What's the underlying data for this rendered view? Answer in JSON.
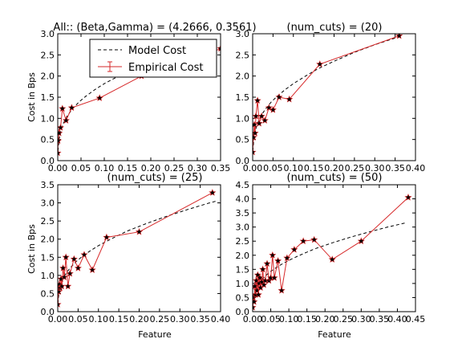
{
  "chart_data": [
    {
      "type": "line",
      "title": "All:: (Beta,Gamma) = (4.2666, 0.3561)",
      "xlabel": "",
      "ylabel": "Cost in Bps",
      "xlim": [
        0,
        0.35
      ],
      "ylim": [
        0,
        3.0
      ],
      "xticks": [
        0.0,
        0.05,
        0.1,
        0.15,
        0.2,
        0.25,
        0.3,
        0.35
      ],
      "xtick_labels": [
        "0.00",
        "0.05",
        "0.10",
        "0.15",
        "0.20",
        "0.25",
        "0.30",
        "0.35"
      ],
      "yticks": [
        0,
        0.5,
        1.0,
        1.5,
        2.0,
        2.5,
        3.0
      ],
      "ytick_labels": [
        "0.0",
        "0.5",
        "1.0",
        "1.5",
        "2.0",
        "2.5",
        "3.0"
      ],
      "series": [
        {
          "name": "Model Cost",
          "style": "dashed",
          "color": "#000000",
          "x": [
            0.0005,
            0.003,
            0.007,
            0.012,
            0.02,
            0.03,
            0.045,
            0.06,
            0.08,
            0.1,
            0.14,
            0.18,
            0.22,
            0.26,
            0.3,
            0.33
          ],
          "y": [
            0.23,
            0.51,
            0.72,
            0.88,
            1.05,
            1.2,
            1.38,
            1.52,
            1.68,
            1.82,
            2.05,
            2.25,
            2.43,
            2.6,
            2.75,
            2.86
          ]
        },
        {
          "name": "Empirical Cost",
          "style": "solid-star",
          "color": "#d62728",
          "x": [
            0.0,
            0.001,
            0.003,
            0.006,
            0.01,
            0.018,
            0.03,
            0.09,
            0.18,
            0.27,
            0.35
          ],
          "y": [
            0.18,
            0.47,
            0.65,
            0.78,
            1.23,
            0.95,
            1.25,
            1.48,
            2.0,
            2.3,
            2.65
          ]
        }
      ],
      "legend": {
        "placement": "top-left"
      }
    },
    {
      "type": "line",
      "title": "(num_cuts) = (20)",
      "xlabel": "",
      "ylabel": "",
      "xlim": [
        0,
        0.4
      ],
      "ylim": [
        0,
        3.0
      ],
      "xticks": [
        0.0,
        0.05,
        0.1,
        0.15,
        0.2,
        0.25,
        0.3,
        0.35,
        0.4
      ],
      "xtick_labels": [
        "0.00",
        "0.05",
        "0.10",
        "0.15",
        "0.20",
        "0.25",
        "0.30",
        "0.35",
        "0.40"
      ],
      "yticks": [
        0,
        0.5,
        1.0,
        1.5,
        2.0,
        2.5,
        3.0
      ],
      "ytick_labels": [
        "0.0",
        "0.5",
        "1.0",
        "1.5",
        "2.0",
        "2.5",
        "3.0"
      ],
      "series": [
        {
          "name": "Model Cost",
          "style": "dashed",
          "color": "#000000",
          "x": [
            0.0005,
            0.003,
            0.007,
            0.012,
            0.02,
            0.03,
            0.045,
            0.06,
            0.08,
            0.1,
            0.13,
            0.16,
            0.2,
            0.25,
            0.3,
            0.36
          ],
          "y": [
            0.23,
            0.51,
            0.72,
            0.88,
            1.05,
            1.2,
            1.38,
            1.52,
            1.68,
            1.82,
            2.0,
            2.17,
            2.35,
            2.56,
            2.74,
            2.93
          ]
        },
        {
          "name": "Empirical Cost",
          "style": "solid-star",
          "color": "#d62728",
          "x": [
            0.0,
            0.002,
            0.004,
            0.006,
            0.008,
            0.012,
            0.016,
            0.022,
            0.03,
            0.04,
            0.05,
            0.065,
            0.09,
            0.165,
            0.36
          ],
          "y": [
            0.2,
            0.55,
            0.85,
            0.65,
            1.05,
            1.42,
            0.88,
            1.05,
            0.95,
            1.25,
            1.2,
            1.5,
            1.45,
            2.28,
            2.95
          ]
        }
      ]
    },
    {
      "type": "line",
      "title": "(num_cuts) = (25)",
      "xlabel": "Feature",
      "ylabel": "Cost in Bps",
      "xlim": [
        0,
        0.4
      ],
      "ylim": [
        0,
        3.5
      ],
      "xticks": [
        0.0,
        0.05,
        0.1,
        0.15,
        0.2,
        0.25,
        0.3,
        0.35,
        0.4
      ],
      "xtick_labels": [
        "0.00",
        "0.05",
        "0.10",
        "0.15",
        "0.20",
        "0.25",
        "0.30",
        "0.35",
        "0.40"
      ],
      "yticks": [
        0,
        0.5,
        1.0,
        1.5,
        2.0,
        2.5,
        3.0,
        3.5
      ],
      "ytick_labels": [
        "0.0",
        "0.5",
        "1.0",
        "1.5",
        "2.0",
        "2.5",
        "3.0",
        "3.5"
      ],
      "series": [
        {
          "name": "Model Cost",
          "style": "dashed",
          "color": "#000000",
          "x": [
            0.0005,
            0.003,
            0.007,
            0.012,
            0.02,
            0.03,
            0.045,
            0.06,
            0.08,
            0.1,
            0.13,
            0.17,
            0.22,
            0.27,
            0.32,
            0.37,
            0.39
          ],
          "y": [
            0.23,
            0.51,
            0.72,
            0.88,
            1.05,
            1.2,
            1.38,
            1.52,
            1.68,
            1.82,
            2.0,
            2.22,
            2.44,
            2.64,
            2.82,
            2.99,
            3.05
          ]
        },
        {
          "name": "Empirical Cost",
          "style": "solid-star",
          "color": "#d62728",
          "x": [
            0.0,
            0.002,
            0.004,
            0.006,
            0.008,
            0.01,
            0.013,
            0.016,
            0.02,
            0.025,
            0.03,
            0.04,
            0.05,
            0.065,
            0.085,
            0.12,
            0.2,
            0.38
          ],
          "y": [
            0.2,
            0.55,
            0.75,
            0.65,
            0.9,
            0.7,
            1.2,
            0.95,
            1.5,
            0.7,
            1.05,
            1.45,
            1.2,
            1.57,
            1.15,
            2.05,
            2.2,
            3.28
          ]
        }
      ]
    },
    {
      "type": "line",
      "title": "(num_cuts) = (50)",
      "xlabel": "Feature",
      "ylabel": "",
      "xlim": [
        0,
        0.45
      ],
      "ylim": [
        0,
        4.5
      ],
      "xticks": [
        0.0,
        0.05,
        0.1,
        0.15,
        0.2,
        0.25,
        0.3,
        0.35,
        0.4,
        0.45
      ],
      "xtick_labels": [
        "0.00",
        "0.05",
        "0.10",
        "0.15",
        "0.20",
        "0.25",
        "0.30",
        "0.35",
        "0.40",
        "0.45"
      ],
      "yticks": [
        0,
        0.5,
        1.0,
        1.5,
        2.0,
        2.5,
        3.0,
        3.5,
        4.0,
        4.5
      ],
      "ytick_labels": [
        "0.0",
        "0.5",
        "1.0",
        "1.5",
        "2.0",
        "2.5",
        "3.0",
        "3.5",
        "4.0",
        "4.5"
      ],
      "series": [
        {
          "name": "Model Cost",
          "style": "dashed",
          "color": "#000000",
          "x": [
            0.0005,
            0.003,
            0.007,
            0.012,
            0.02,
            0.03,
            0.045,
            0.06,
            0.08,
            0.1,
            0.13,
            0.17,
            0.22,
            0.27,
            0.32,
            0.37,
            0.42
          ],
          "y": [
            0.23,
            0.51,
            0.72,
            0.88,
            1.05,
            1.2,
            1.38,
            1.52,
            1.68,
            1.82,
            2.0,
            2.22,
            2.44,
            2.64,
            2.82,
            2.99,
            3.14
          ]
        },
        {
          "name": "Empirical Cost",
          "style": "solid-star",
          "color": "#d62728",
          "x": [
            0.0,
            0.002,
            0.004,
            0.006,
            0.008,
            0.01,
            0.012,
            0.014,
            0.016,
            0.018,
            0.02,
            0.022,
            0.025,
            0.028,
            0.031,
            0.035,
            0.04,
            0.045,
            0.05,
            0.055,
            0.06,
            0.07,
            0.08,
            0.095,
            0.115,
            0.14,
            0.17,
            0.22,
            0.3,
            0.43
          ],
          "y": [
            0.15,
            0.5,
            0.35,
            0.9,
            0.6,
            1.1,
            0.75,
            1.3,
            0.6,
            1.0,
            1.2,
            0.85,
            1.05,
            1.5,
            0.95,
            1.1,
            1.7,
            1.1,
            1.2,
            2.0,
            1.2,
            1.8,
            0.75,
            1.9,
            2.2,
            2.5,
            2.55,
            1.85,
            2.5,
            4.05
          ]
        }
      ]
    }
  ]
}
